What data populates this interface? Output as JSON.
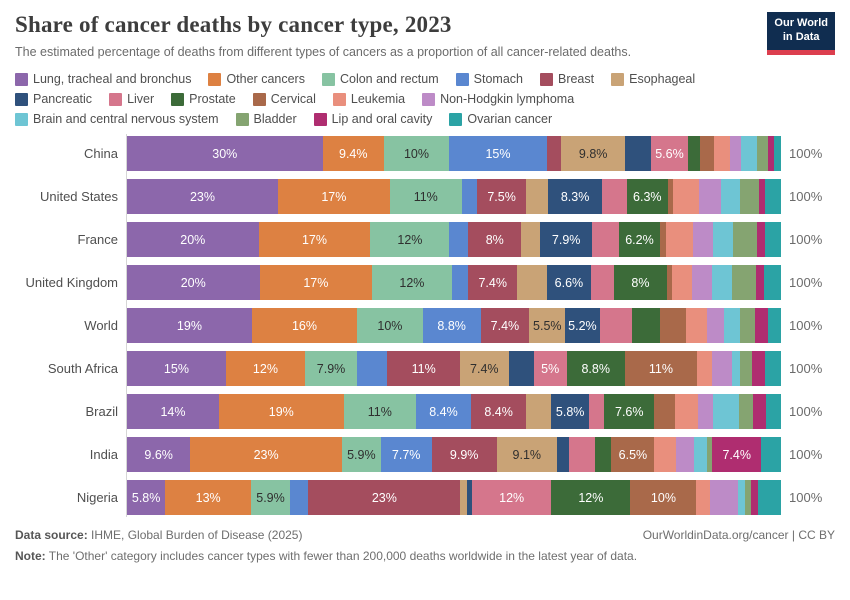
{
  "header": {
    "title": "Share of cancer deaths by cancer type, 2023",
    "subtitle": "The estimated percentage of deaths from different types of cancers as a proportion of all cancer-related deaths.",
    "logo": {
      "line1": "Our World",
      "line2": "in Data"
    }
  },
  "chart_data": {
    "type": "bar",
    "variant": "horizontal-stacked",
    "unit": "%",
    "xlim": [
      0,
      100
    ],
    "axis_end_label": "100%",
    "grid": false,
    "legend_position": "top",
    "categories": [
      "Lung, tracheal and bronchus",
      "Other cancers",
      "Colon and rectum",
      "Stomach",
      "Breast",
      "Esophageal",
      "Pancreatic",
      "Liver",
      "Prostate",
      "Cervical",
      "Leukemia",
      "Non-Hodgkin lymphoma",
      "Brain and central nervous system",
      "Bladder",
      "Lip and oral cavity",
      "Ovarian cancer"
    ],
    "colors": [
      "#8c67ab",
      "#dd8142",
      "#87c3a2",
      "#5a87d0",
      "#a44d5e",
      "#c9a376",
      "#2f517c",
      "#d5768c",
      "#3c6b39",
      "#a9694a",
      "#e98f7d",
      "#bd8bc7",
      "#6ec5d4",
      "#85a471",
      "#af2d70",
      "#2ba3a5"
    ],
    "dark_text_categories": [
      2,
      5
    ],
    "legend_rows": [
      [
        0,
        1,
        2,
        3,
        4,
        5
      ],
      [
        6,
        7,
        8,
        9,
        10,
        11
      ],
      [
        12,
        13,
        14,
        15
      ]
    ],
    "rows": [
      {
        "name": "China",
        "values": [
          30,
          9.4,
          10,
          15,
          2.2,
          9.8,
          4.0,
          5.6,
          1.9,
          2.2,
          2.4,
          1.7,
          2.4,
          1.7,
          1.0,
          1.0
        ],
        "labels": [
          "30%",
          "9.4%",
          "10%",
          "15%",
          "",
          "9.8%",
          "",
          "5.6%",
          "",
          "",
          "",
          "",
          "",
          "",
          "",
          ""
        ]
      },
      {
        "name": "United States",
        "values": [
          23,
          17,
          11,
          2.3,
          7.5,
          3.3,
          8.3,
          3.7,
          6.3,
          0.7,
          4.0,
          3.4,
          2.9,
          2.9,
          0.9,
          2.4
        ],
        "labels": [
          "23%",
          "17%",
          "11%",
          "",
          "7.5%",
          "",
          "8.3%",
          "",
          "6.3%",
          "",
          "",
          "",
          "",
          "",
          "",
          ""
        ]
      },
      {
        "name": "France",
        "values": [
          20,
          17,
          12,
          2.9,
          8,
          2.9,
          7.9,
          4.1,
          6.2,
          0.9,
          4.2,
          3.0,
          3.0,
          3.7,
          1.2,
          2.4
        ],
        "labels": [
          "20%",
          "17%",
          "12%",
          "",
          "8%",
          "",
          "7.9%",
          "",
          "6.2%",
          "",
          "",
          "",
          "",
          "",
          "",
          ""
        ]
      },
      {
        "name": "United Kingdom",
        "values": [
          20,
          17,
          12,
          2.5,
          7.4,
          4.5,
          6.6,
          3.5,
          8,
          0.7,
          3.1,
          3.0,
          3.0,
          3.7,
          1.2,
          2.5
        ],
        "labels": [
          "20%",
          "17%",
          "12%",
          "",
          "7.4%",
          "",
          "6.6%",
          "",
          "8%",
          "",
          "",
          "",
          "",
          "",
          "",
          ""
        ]
      },
      {
        "name": "World",
        "values": [
          19,
          16,
          10,
          8.8,
          7.4,
          5.5,
          5.2,
          5.0,
          4.2,
          3.9,
          3.2,
          2.6,
          2.5,
          2.2,
          2.0,
          2.0
        ],
        "labels": [
          "19%",
          "16%",
          "10%",
          "8.8%",
          "7.4%",
          "5.5%",
          "5.2%",
          "",
          "",
          "",
          "",
          "",
          "",
          "",
          "",
          ""
        ]
      },
      {
        "name": "South Africa",
        "values": [
          15,
          12,
          7.9,
          4.6,
          11,
          7.4,
          3.8,
          5,
          8.8,
          11,
          2.3,
          3.0,
          1.2,
          1.8,
          2.0,
          2.4
        ],
        "labels": [
          "15%",
          "12%",
          "7.9%",
          "",
          "11%",
          "7.4%",
          "",
          "5%",
          "8.8%",
          "11%",
          "",
          "",
          "",
          "",
          "",
          ""
        ]
      },
      {
        "name": "Brazil",
        "values": [
          14,
          19,
          11,
          8.4,
          8.4,
          3.8,
          5.8,
          2.3,
          7.6,
          3.2,
          3.5,
          2.2,
          4.0,
          2.2,
          2.0,
          2.2
        ],
        "labels": [
          "14%",
          "19%",
          "11%",
          "8.4%",
          "8.4%",
          "",
          "5.8%",
          "",
          "7.6%",
          "",
          "",
          "",
          "",
          "",
          "",
          ""
        ]
      },
      {
        "name": "India",
        "values": [
          9.6,
          23,
          5.9,
          7.7,
          9.9,
          9.1,
          1.9,
          3.9,
          2.5,
          6.5,
          3.3,
          2.7,
          2.0,
          0.8,
          7.4,
          3.0
        ],
        "labels": [
          "9.6%",
          "23%",
          "5.9%",
          "7.7%",
          "9.9%",
          "9.1%",
          "",
          "",
          "",
          "6.5%",
          "",
          "",
          "",
          "",
          "7.4%",
          ""
        ]
      },
      {
        "name": "Nigeria",
        "values": [
          5.8,
          13,
          5.9,
          2.8,
          23,
          1.1,
          0.7,
          12,
          12,
          10,
          2.1,
          4.2,
          1.1,
          0.9,
          1.1,
          3.4
        ],
        "labels": [
          "5.8%",
          "13%",
          "5.9%",
          "",
          "23%",
          "",
          "",
          "12%",
          "12%",
          "10%",
          "",
          "",
          "",
          "",
          "",
          ""
        ]
      }
    ]
  },
  "footer": {
    "source_label": "Data source:",
    "source_text": " IHME, Global Burden of Disease (2025)",
    "link_text": "OurWorldinData.org/cancer | CC BY",
    "note_label": "Note:",
    "note_text": " The 'Other' category includes cancer types with fewer than 200,000 deaths worldwide in the latest year of data."
  }
}
